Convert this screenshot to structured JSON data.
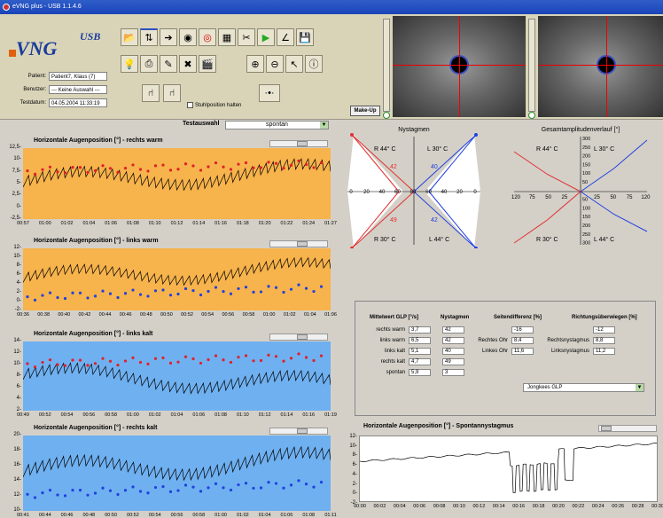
{
  "window": {
    "title": "eVNG plus - USB 1.1.4.6"
  },
  "logo": {
    "text": "VNG",
    "sup": "USB"
  },
  "info": {
    "patient_label": "Patient:",
    "patient": "Patient7, Klaus (7)",
    "user_label": "Benutzer:",
    "user": "--- Keine Auswahl ---",
    "date_label": "Testdatum:",
    "date": "04.05.2004 11:33:19"
  },
  "toolbar": {
    "stuhl_label": "Stuhlposition halten",
    "makeup_label": "Make-Up"
  },
  "test": {
    "label": "Testauswahl",
    "value": "spontan"
  },
  "charts": [
    {
      "title": "Horizontale Augenposition [°] - rechts warm",
      "bg": "#f7b34c",
      "yticks": [
        "12,5-",
        "10-",
        "7,5-",
        "5-",
        "2,5-",
        "0-",
        "-2,5-"
      ],
      "xticks": [
        "00:57",
        "01:00",
        "01:02",
        "01:04",
        "01:06",
        "01:08",
        "01:10",
        "01:12",
        "01:14",
        "01:16",
        "01:18",
        "01:20",
        "01:22",
        "01:24",
        "01:27"
      ],
      "dots": "#e0202a"
    },
    {
      "title": "Horizontale Augenposition [°] - links warm",
      "bg": "#f7b34c",
      "yticks": [
        "12-",
        "10-",
        "8-",
        "6-",
        "4-",
        "2-",
        "0-",
        "-2-"
      ],
      "xticks": [
        "00:36",
        "00:38",
        "00:40",
        "00:42",
        "00:44",
        "00:46",
        "00:48",
        "00:50",
        "00:52",
        "00:54",
        "00:56",
        "00:58",
        "01:00",
        "01:02",
        "01:04",
        "01:06"
      ],
      "dots": "#2040e0"
    },
    {
      "title": "Horizontale Augenposition [°] - links kalt",
      "bg": "#6fb0f0",
      "yticks": [
        "14-",
        "12-",
        "10-",
        "8-",
        "6-",
        "4-",
        "2-"
      ],
      "xticks": [
        "00:49",
        "00:52",
        "00:54",
        "00:56",
        "00:58",
        "01:00",
        "01:02",
        "01:04",
        "01:06",
        "01:08",
        "01:10",
        "01:12",
        "01:14",
        "01:16",
        "01:19"
      ],
      "dots": "#e0202a"
    },
    {
      "title": "Horizontale Augenposition [°] - rechts kalt",
      "bg": "#6fb0f0",
      "yticks": [
        "20-",
        "18-",
        "16-",
        "14-",
        "12-",
        "10-"
      ],
      "xticks": [
        "00:41",
        "00:44",
        "00:46",
        "00:48",
        "00:50",
        "00:52",
        "00:54",
        "00:56",
        "00:58",
        "01:00",
        "01:02",
        "01:04",
        "01:06",
        "01:08",
        "01:11"
      ],
      "dots": "#2040e0"
    }
  ],
  "nystagmen": {
    "title": "Nystagmen",
    "r44": "R 44° C",
    "l30": "L 30° C",
    "r30": "R 30° C",
    "l44": "L 44° C",
    "v_r44": "42",
    "v_l30": "40",
    "v_r30": "49",
    "v_l44": "42",
    "axis": [
      "0",
      "20",
      "40",
      "60",
      "80",
      "60",
      "40",
      "20",
      "0"
    ]
  },
  "gesamt": {
    "title": "Gesamtamplitudenverlauf [°]",
    "r44": "R 44° C",
    "l30": "L 30° C",
    "r30": "R 30° C",
    "l44": "L 44° C",
    "axis": [
      "120",
      "75",
      "50",
      "25",
      "",
      "25",
      "50",
      "75",
      "120"
    ],
    "yaxis": [
      "300",
      "250",
      "200",
      "150",
      "100",
      "50",
      "",
      "50",
      "100",
      "150",
      "200",
      "250",
      "300"
    ]
  },
  "stats": {
    "h_glp": "Mittelwert GLP [°/s]",
    "h_nyst": "Nystagmen",
    "h_seiten": "Seitendifferenz [%]",
    "h_richt": "Richtungsüberwiegen [%]",
    "rows": [
      {
        "name": "rechts warm",
        "glp": "3,7",
        "nyst": "42"
      },
      {
        "name": "links warm",
        "glp": "6,5",
        "nyst": "42"
      },
      {
        "name": "links kalt",
        "glp": "5,1",
        "nyst": "40"
      },
      {
        "name": "rechts kalt",
        "glp": "4,7",
        "nyst": "49"
      },
      {
        "name": "spontan",
        "glp": "5,9",
        "nyst": "3"
      }
    ],
    "seiten_total": "-16",
    "rechtes_ohr_label": "Rechtes Ohr",
    "rechtes_ohr": "8,4",
    "linkes_ohr_label": "Linkes Ohr",
    "linkes_ohr": "11,6",
    "richt_total": "-12",
    "rechtsnyst_label": "Rechtsnystagmus",
    "rechtsnyst": "8,8",
    "linksnyst_label": "Linksnystagmus",
    "linksnyst": "11,2",
    "method": "Jongkees GLP"
  },
  "spontan": {
    "title": "Horizontale Augenposition [°] - Spontannystagmus",
    "yticks": [
      "12-",
      "10-",
      "8-",
      "6-",
      "4-",
      "2-",
      "0-",
      "-2-"
    ],
    "xticks": [
      "00:00",
      "00:02",
      "00:04",
      "00:06",
      "00:08",
      "00:10",
      "00:12",
      "00:14",
      "00:16",
      "00:18",
      "00:20",
      "00:22",
      "00:24",
      "00:26",
      "00:28",
      "00:30"
    ]
  }
}
